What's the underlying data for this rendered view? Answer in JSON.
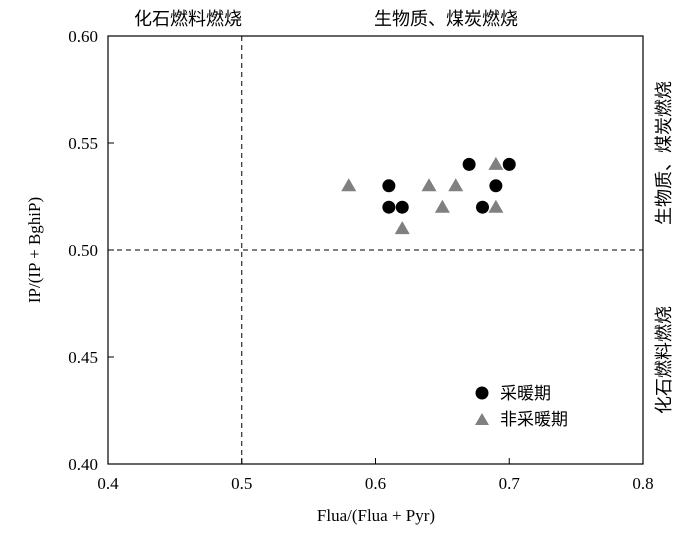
{
  "chart_data": {
    "type": "scatter",
    "xlabel": "Flua/(Flua + Pyr)",
    "ylabel": "IP/(IP + BghiP)",
    "xlim": [
      0.4,
      0.8
    ],
    "ylim": [
      0.4,
      0.6
    ],
    "x_ticks": [
      "0.4",
      "0.5",
      "0.6",
      "0.7",
      "0.8"
    ],
    "y_ticks": [
      "0.40",
      "0.45",
      "0.50",
      "0.55",
      "0.60"
    ],
    "threshold_lines": {
      "x": 0.5,
      "y": 0.5
    },
    "grid": false,
    "legend_position": "bottom-right",
    "region_labels": {
      "top_left": "化石燃料燃烧",
      "top_right": "生物质、煤炭燃烧",
      "right_upper": "生物质、煤炭燃烧",
      "right_lower": "化石燃料燃烧"
    },
    "series": [
      {
        "name": "采暖期",
        "marker": "circle",
        "color": "#000000",
        "points": [
          {
            "x": 0.61,
            "y": 0.53
          },
          {
            "x": 0.61,
            "y": 0.52
          },
          {
            "x": 0.62,
            "y": 0.52
          },
          {
            "x": 0.67,
            "y": 0.54
          },
          {
            "x": 0.68,
            "y": 0.52
          },
          {
            "x": 0.69,
            "y": 0.53
          },
          {
            "x": 0.7,
            "y": 0.54
          }
        ]
      },
      {
        "name": "非采暖期",
        "marker": "triangle",
        "color": "#808080",
        "points": [
          {
            "x": 0.58,
            "y": 0.53
          },
          {
            "x": 0.62,
            "y": 0.51
          },
          {
            "x": 0.64,
            "y": 0.53
          },
          {
            "x": 0.65,
            "y": 0.52
          },
          {
            "x": 0.66,
            "y": 0.53
          },
          {
            "x": 0.69,
            "y": 0.54
          },
          {
            "x": 0.69,
            "y": 0.52
          }
        ]
      }
    ]
  }
}
